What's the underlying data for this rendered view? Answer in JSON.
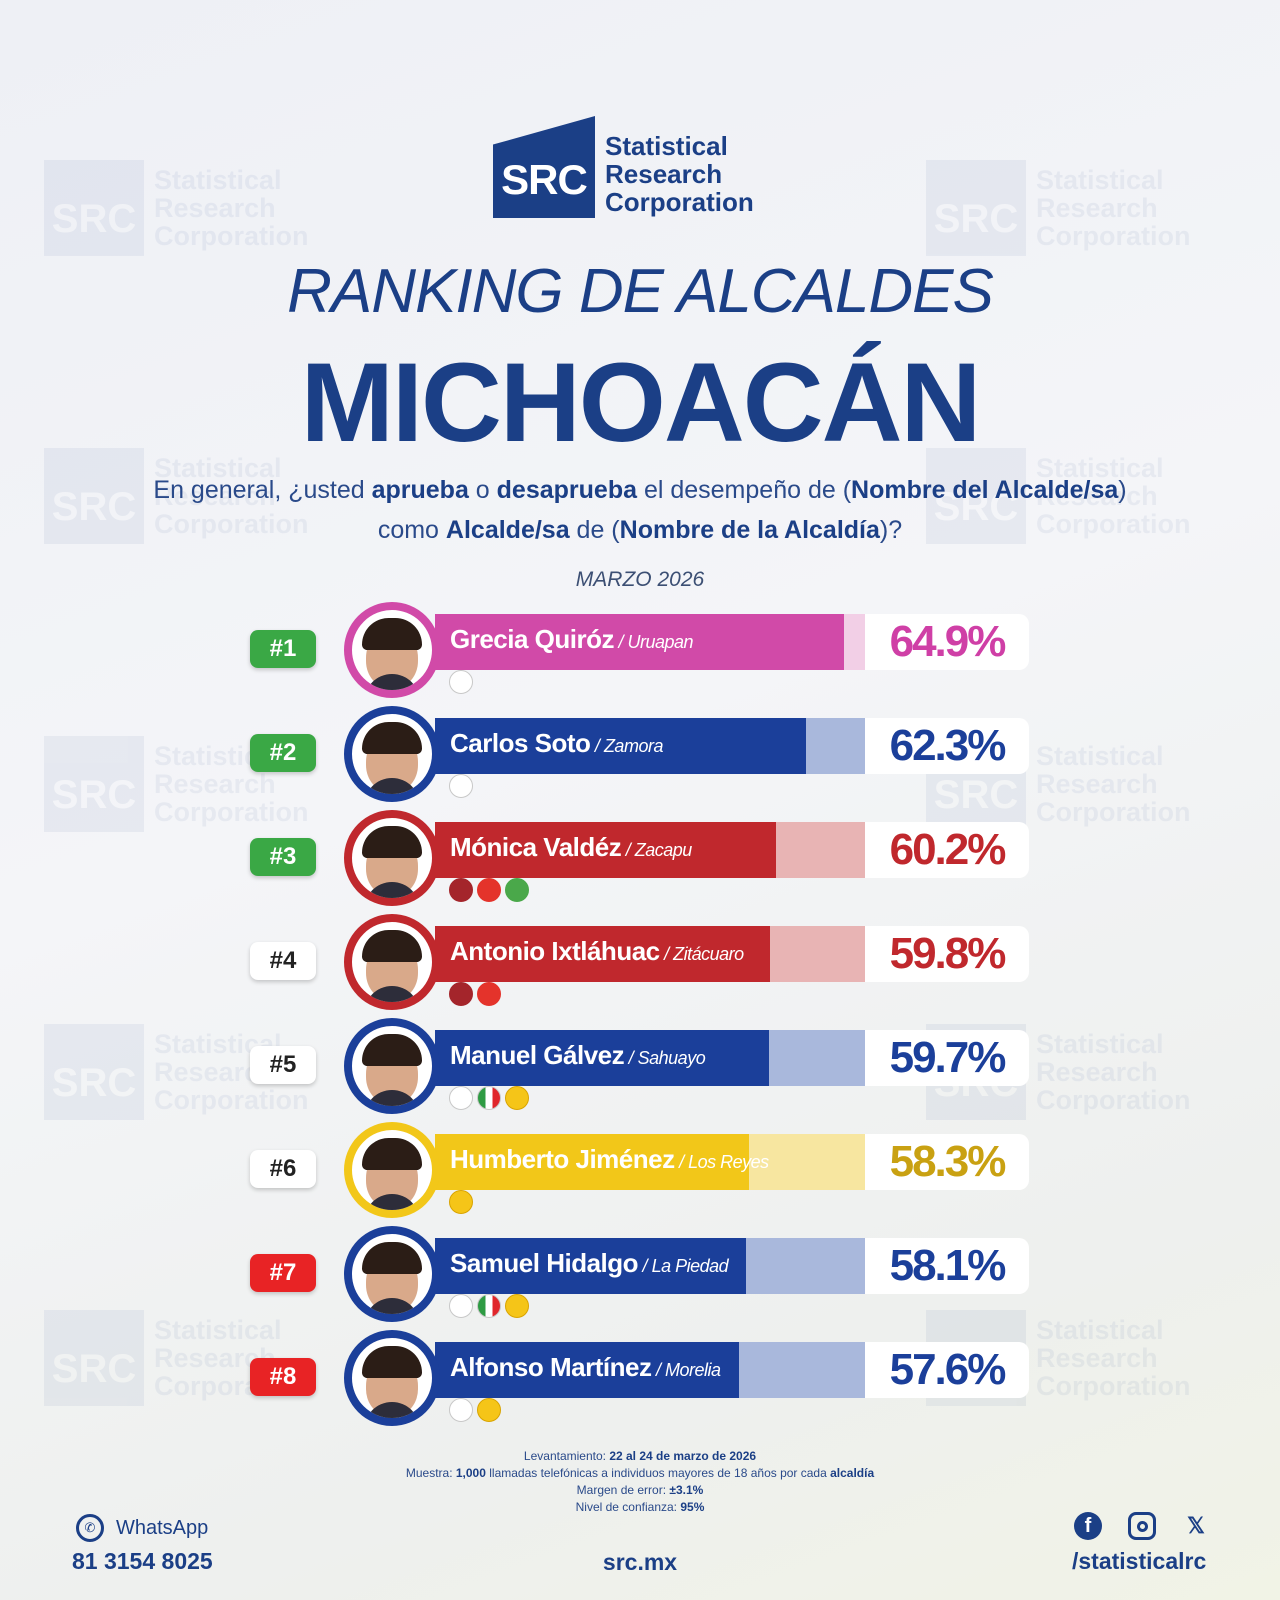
{
  "logo": {
    "mark": "SRC",
    "line1": "Statistical",
    "line2": "Research",
    "line3": "Corporation"
  },
  "title_line1": "RANKING DE ALCALDES",
  "title_line2": "MICHOACÁN",
  "question": {
    "p1": "En general, ¿usted ",
    "b1": "aprueba",
    "p2": " o ",
    "b2": "desaprueba",
    "p3": " el desempeño de (",
    "b3": "Nombre del Alcalde/sa",
    "p4": ") como ",
    "b4": "Alcalde/sa",
    "p5": " de (",
    "b5": "Nombre de la Alcaldía",
    "p6": ")?"
  },
  "date": "MARZO 2026",
  "chart_data": {
    "type": "bar",
    "orientation": "horizontal",
    "unit": "%",
    "categories": [
      "Grecia Quiróz",
      "Carlos Soto",
      "Mónica Valdéz",
      "Antonio Ixtláhuac",
      "Manuel Gálvez",
      "Humberto Jiménez",
      "Samuel Hidalgo",
      "Alfonso Martínez"
    ],
    "values": [
      64.9,
      62.3,
      60.2,
      59.8,
      59.7,
      58.3,
      58.1,
      57.6
    ],
    "rows": [
      {
        "rank": "#1",
        "name": "Grecia Quiróz",
        "city": "Uruapan",
        "value": 64.9,
        "label": "64.9%",
        "color": "#d14aa8",
        "light": "#f2cfe6",
        "text_color": "#cf3fa6",
        "rank_bg": "#3aa845",
        "rank_fg": "#ffffff",
        "parties": [
          "Movimiento del Sombrero"
        ]
      },
      {
        "rank": "#2",
        "name": "Carlos Soto",
        "city": "Zamora",
        "value": 62.3,
        "label": "62.3%",
        "color": "#1b3f9a",
        "light": "#a9b8dc",
        "text_color": "#1b3f9a",
        "rank_bg": "#3aa845",
        "rank_fg": "#ffffff",
        "parties": [
          "PAN"
        ]
      },
      {
        "rank": "#3",
        "name": "Mónica Valdéz",
        "city": "Zacapu",
        "value": 60.2,
        "label": "60.2%",
        "color": "#c0282d",
        "light": "#e8b4b4",
        "text_color": "#c0282d",
        "rank_bg": "#3aa845",
        "rank_fg": "#ffffff",
        "parties": [
          "morena",
          "PT",
          "VERDE"
        ]
      },
      {
        "rank": "#4",
        "name": "Antonio Ixtláhuac",
        "city": "Zitácuaro",
        "value": 59.8,
        "label": "59.8%",
        "color": "#c0282d",
        "light": "#e8b4b4",
        "text_color": "#c0282d",
        "rank_bg": "#ffffff",
        "rank_fg": "#222222",
        "parties": [
          "morena",
          "PT"
        ]
      },
      {
        "rank": "#5",
        "name": "Manuel Gálvez",
        "city": "Sahuayo",
        "value": 59.7,
        "label": "59.7%",
        "color": "#1b3f9a",
        "light": "#a9b8dc",
        "text_color": "#1b3f9a",
        "rank_bg": "#ffffff",
        "rank_fg": "#222222",
        "parties": [
          "PAN",
          "PRI",
          "PRD"
        ]
      },
      {
        "rank": "#6",
        "name": "Humberto Jiménez",
        "city": "Los Reyes",
        "value": 58.3,
        "label": "58.3%",
        "color": "#f2c719",
        "light": "#f7e6a0",
        "text_color": "#c9a112",
        "rank_bg": "#ffffff",
        "rank_fg": "#222222",
        "parties": [
          "PRD"
        ]
      },
      {
        "rank": "#7",
        "name": "Samuel Hidalgo",
        "city": "La Piedad",
        "value": 58.1,
        "label": "58.1%",
        "color": "#1b3f9a",
        "light": "#a9b8dc",
        "text_color": "#1b3f9a",
        "rank_bg": "#e82325",
        "rank_fg": "#ffffff",
        "parties": [
          "PAN",
          "PRI",
          "PRD"
        ]
      },
      {
        "rank": "#8",
        "name": "Alfonso Martínez",
        "city": "Morelia",
        "value": 57.6,
        "label": "57.6%",
        "color": "#1b3f9a",
        "light": "#a9b8dc",
        "text_color": "#1b3f9a",
        "rank_bg": "#e82325",
        "rank_fg": "#ffffff",
        "parties": [
          "PAN",
          "PRD"
        ]
      }
    ]
  },
  "notes": {
    "l1a": "Levantamiento: ",
    "l1b": "22 al 24 de marzo de 2026",
    "l2a": "Muestra: ",
    "l2b": "1,000",
    "l2c": " llamadas telefónicas a individuos mayores de 18 años por cada ",
    "l2d": "alcaldía",
    "l3a": "Margen de error: ",
    "l3b": "±3.1%",
    "l4a": "Nivel de confianza: ",
    "l4b": "95%"
  },
  "footer": {
    "whatsapp_label": "WhatsApp",
    "phone": "81 3154 8025",
    "site": "src.mx",
    "handle": "/statisticalrc",
    "icons": [
      "whatsapp-icon",
      "facebook-icon",
      "instagram-icon",
      "x-icon"
    ]
  }
}
